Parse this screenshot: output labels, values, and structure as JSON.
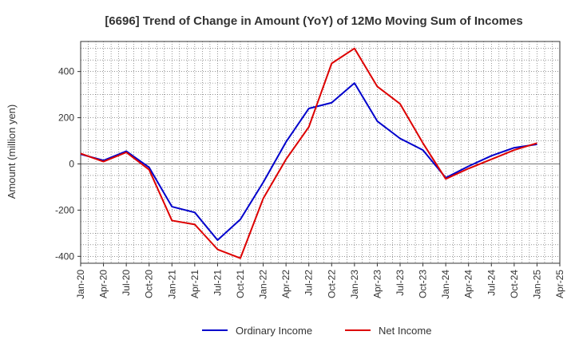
{
  "chart_data": {
    "type": "line",
    "title": "[6696]  Trend of Change in Amount (YoY) of 12Mo Moving Sum of Incomes",
    "ylabel": "Amount (million yen)",
    "xlabel": "",
    "ylim": [
      -430,
      530
    ],
    "y_ticks": [
      -400,
      -200,
      0,
      200,
      400
    ],
    "y_tick_labels": [
      "-400",
      "-200",
      "0",
      "200",
      "400"
    ],
    "x_tick_labels": [
      "Jan-20",
      "Apr-20",
      "Jul-20",
      "Oct-20",
      "Jan-21",
      "Apr-21",
      "Jul-21",
      "Oct-21",
      "Jan-22",
      "Apr-22",
      "Jul-22",
      "Oct-22",
      "Jan-23",
      "Apr-23",
      "Jul-23",
      "Oct-23",
      "Jan-24",
      "Apr-24",
      "Jul-24",
      "Oct-24",
      "Jan-25",
      "Apr-25"
    ],
    "categories": [
      "Jan-20",
      "Apr-20",
      "Jul-20",
      "Oct-20",
      "Jan-21",
      "Apr-21",
      "Jul-21",
      "Oct-21",
      "Jan-22",
      "Apr-22",
      "Jul-22",
      "Oct-22",
      "Jan-23",
      "Apr-23",
      "Jul-23",
      "Oct-23",
      "Jan-24",
      "Apr-24",
      "Jul-24",
      "Oct-24",
      "Jan-25"
    ],
    "grid": true,
    "legend_position": "bottom",
    "series": [
      {
        "name": "Ordinary Income",
        "color": "#0000cc",
        "values": [
          42,
          15,
          55,
          -15,
          -185,
          -210,
          -330,
          -240,
          -80,
          95,
          240,
          265,
          350,
          185,
          110,
          60,
          -60,
          -10,
          35,
          70,
          85
        ]
      },
      {
        "name": "Net Income",
        "color": "#dd0000",
        "values": [
          45,
          10,
          50,
          -25,
          -245,
          -262,
          -370,
          -408,
          -150,
          20,
          160,
          435,
          500,
          335,
          260,
          90,
          -65,
          -20,
          20,
          60,
          90
        ]
      }
    ]
  }
}
